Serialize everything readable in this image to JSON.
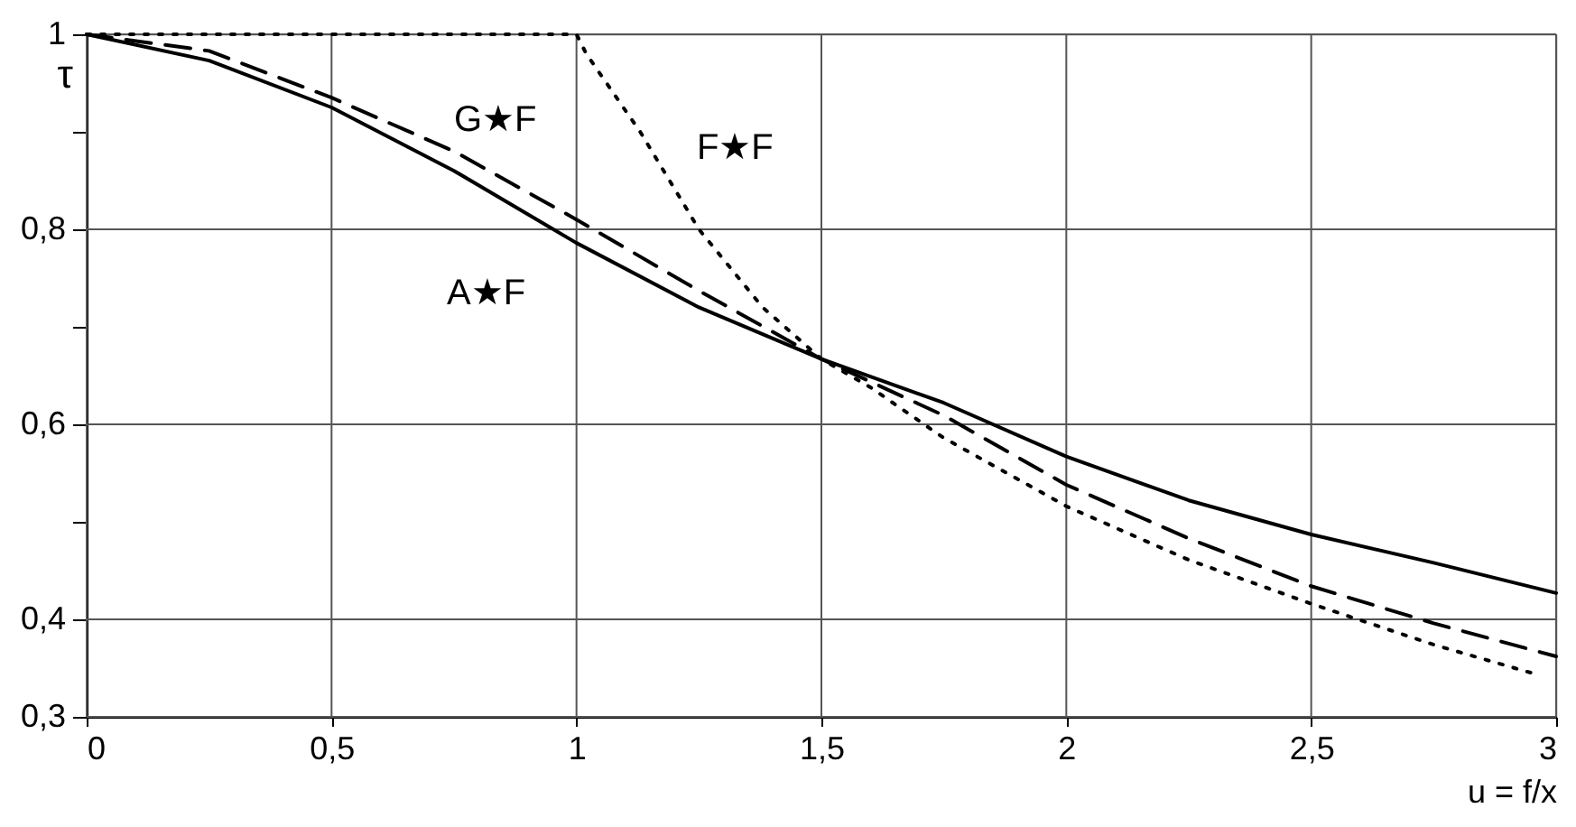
{
  "chart_data": {
    "type": "line",
    "xlabel": "u = f/x",
    "ylabel": "τ",
    "xlim": [
      0,
      3
    ],
    "ylim": [
      0.3,
      1
    ],
    "xticks": [
      0,
      {
        "value": 0.5,
        "label": "0,5"
      },
      1,
      {
        "value": 1.5,
        "label": "1,5"
      },
      2,
      {
        "value": 2.5,
        "label": "2,5"
      },
      3
    ],
    "yticks": [
      {
        "value": 0.3,
        "label": "0,3"
      },
      {
        "value": 0.4,
        "label": "0,4"
      },
      {
        "value": 0.5,
        "label": null
      },
      {
        "value": 0.6,
        "label": "0,6"
      },
      {
        "value": 0.7,
        "label": null
      },
      {
        "value": 0.8,
        "label": "0,8"
      },
      {
        "value": 0.9,
        "label": null
      },
      1
    ],
    "grid": true,
    "marker": "none",
    "series": [
      {
        "name": "A★F",
        "color": "#000000",
        "line_style": "solid",
        "x": [
          0,
          0.25,
          0.5,
          0.75,
          1,
          1.25,
          1.5,
          1.75,
          2,
          2.25,
          2.5,
          2.75,
          3
        ],
        "values": [
          1,
          0.973,
          0.925,
          0.86,
          0.786,
          0.72,
          0.667,
          0.622,
          0.567,
          0.522,
          0.487,
          0.458,
          0.427
        ]
      },
      {
        "name": "G★F",
        "color": "#000000",
        "line_style": "dashed",
        "x": [
          0,
          0.25,
          0.5,
          0.75,
          1,
          1.25,
          1.5,
          1.75,
          2,
          2.25,
          2.5,
          2.75,
          3
        ],
        "values": [
          1,
          0.983,
          0.935,
          0.88,
          0.81,
          0.737,
          0.667,
          0.609,
          0.538,
          0.483,
          0.434,
          0.396,
          0.362
        ]
      },
      {
        "name": "F★F",
        "color": "#000000",
        "line_style": "dotted",
        "x": [
          0,
          0.5,
          1,
          1.02,
          1.13,
          1.25,
          1.38,
          1.5,
          1.6,
          1.75,
          2,
          2.25,
          2.5,
          2.75,
          2.95
        ],
        "values": [
          1,
          1,
          1,
          0.98,
          0.9,
          0.8,
          0.72,
          0.667,
          0.638,
          0.586,
          0.516,
          0.461,
          0.416,
          0.374,
          0.345
        ]
      }
    ]
  }
}
